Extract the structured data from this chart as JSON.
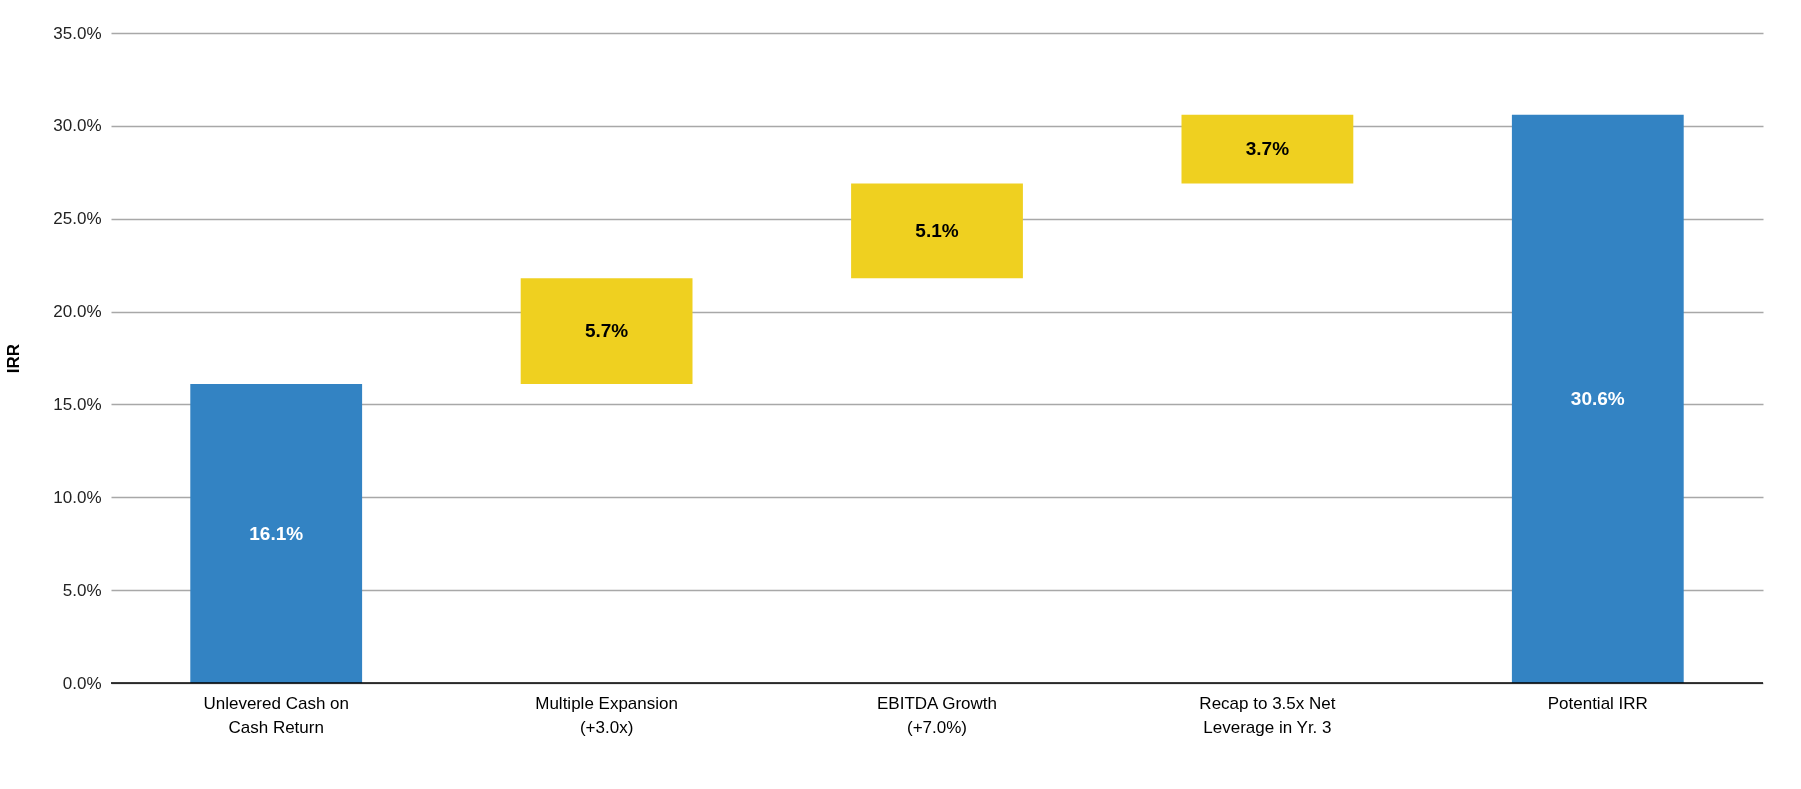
{
  "chart_data": {
    "type": "bar",
    "ylabel": "IRR",
    "categories": [
      "Unlevered Cash on Cash Return",
      "Multiple Expansion (+3.0x)",
      "EBITDA Growth (+7.0%)",
      "Recap to 3.5x Net Leverage in Yr. 3",
      "Potential IRR"
    ],
    "values": [
      16.1,
      5.7,
      5.1,
      3.7,
      30.6
    ],
    "base": [
      0,
      16.1,
      21.8,
      26.9,
      0
    ],
    "colors": [
      "#3383c3",
      "#efd020",
      "#efd020",
      "#efd020",
      "#3383c3"
    ],
    "value_labels": [
      "16.1%",
      "5.7%",
      "5.1%",
      "3.7%",
      "30.6%"
    ],
    "ylim": [
      0,
      35
    ],
    "yticks": [
      {
        "value": 0,
        "label": "0.0%"
      },
      {
        "value": 5,
        "label": "5.0%"
      },
      {
        "value": 10,
        "label": "10.0%"
      },
      {
        "value": 15,
        "label": "15.0%"
      },
      {
        "value": 20,
        "label": "20.0%"
      },
      {
        "value": 25,
        "label": "25.0%"
      },
      {
        "value": 30,
        "label": "30.0%"
      },
      {
        "value": 35,
        "label": "35.0%"
      }
    ],
    "grid": true
  }
}
